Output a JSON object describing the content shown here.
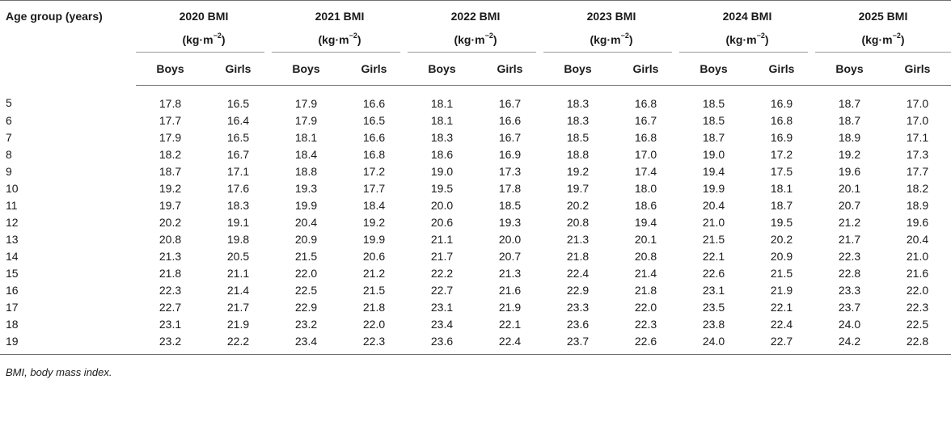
{
  "table": {
    "age_header": "Age group (years)",
    "years": [
      {
        "label": "2020 BMI",
        "unit_prefix": "(kg·m",
        "unit_exp": "−2",
        "unit_suffix": ")"
      },
      {
        "label": "2021 BMI",
        "unit_prefix": "(kg·m",
        "unit_exp": "−2",
        "unit_suffix": ")"
      },
      {
        "label": "2022 BMI",
        "unit_prefix": "(kg·m",
        "unit_exp": "−2",
        "unit_suffix": ")"
      },
      {
        "label": "2023 BMI",
        "unit_prefix": "(kg·m",
        "unit_exp": "−2",
        "unit_suffix": ")"
      },
      {
        "label": "2024 BMI",
        "unit_prefix": "(kg·m",
        "unit_exp": "−2",
        "unit_suffix": ")"
      },
      {
        "label": "2025 BMI",
        "unit_prefix": "(kg·m",
        "unit_exp": "−2",
        "unit_suffix": ")"
      }
    ],
    "sex_labels": [
      "Boys",
      "Girls"
    ],
    "rows": [
      {
        "age": "5",
        "values": [
          "17.8",
          "16.5",
          "17.9",
          "16.6",
          "18.1",
          "16.7",
          "18.3",
          "16.8",
          "18.5",
          "16.9",
          "18.7",
          "17.0"
        ]
      },
      {
        "age": "6",
        "values": [
          "17.7",
          "16.4",
          "17.9",
          "16.5",
          "18.1",
          "16.6",
          "18.3",
          "16.7",
          "18.5",
          "16.8",
          "18.7",
          "17.0"
        ]
      },
      {
        "age": "7",
        "values": [
          "17.9",
          "16.5",
          "18.1",
          "16.6",
          "18.3",
          "16.7",
          "18.5",
          "16.8",
          "18.7",
          "16.9",
          "18.9",
          "17.1"
        ]
      },
      {
        "age": "8",
        "values": [
          "18.2",
          "16.7",
          "18.4",
          "16.8",
          "18.6",
          "16.9",
          "18.8",
          "17.0",
          "19.0",
          "17.2",
          "19.2",
          "17.3"
        ]
      },
      {
        "age": "9",
        "values": [
          "18.7",
          "17.1",
          "18.8",
          "17.2",
          "19.0",
          "17.3",
          "19.2",
          "17.4",
          "19.4",
          "17.5",
          "19.6",
          "17.7"
        ]
      },
      {
        "age": "10",
        "values": [
          "19.2",
          "17.6",
          "19.3",
          "17.7",
          "19.5",
          "17.8",
          "19.7",
          "18.0",
          "19.9",
          "18.1",
          "20.1",
          "18.2"
        ]
      },
      {
        "age": "11",
        "values": [
          "19.7",
          "18.3",
          "19.9",
          "18.4",
          "20.0",
          "18.5",
          "20.2",
          "18.6",
          "20.4",
          "18.7",
          "20.7",
          "18.9"
        ]
      },
      {
        "age": "12",
        "values": [
          "20.2",
          "19.1",
          "20.4",
          "19.2",
          "20.6",
          "19.3",
          "20.8",
          "19.4",
          "21.0",
          "19.5",
          "21.2",
          "19.6"
        ]
      },
      {
        "age": "13",
        "values": [
          "20.8",
          "19.8",
          "20.9",
          "19.9",
          "21.1",
          "20.0",
          "21.3",
          "20.1",
          "21.5",
          "20.2",
          "21.7",
          "20.4"
        ]
      },
      {
        "age": "14",
        "values": [
          "21.3",
          "20.5",
          "21.5",
          "20.6",
          "21.7",
          "20.7",
          "21.8",
          "20.8",
          "22.1",
          "20.9",
          "22.3",
          "21.0"
        ]
      },
      {
        "age": "15",
        "values": [
          "21.8",
          "21.1",
          "22.0",
          "21.2",
          "22.2",
          "21.3",
          "22.4",
          "21.4",
          "22.6",
          "21.5",
          "22.8",
          "21.6"
        ]
      },
      {
        "age": "16",
        "values": [
          "22.3",
          "21.4",
          "22.5",
          "21.5",
          "22.7",
          "21.6",
          "22.9",
          "21.8",
          "23.1",
          "21.9",
          "23.3",
          "22.0"
        ]
      },
      {
        "age": "17",
        "values": [
          "22.7",
          "21.7",
          "22.9",
          "21.8",
          "23.1",
          "21.9",
          "23.3",
          "22.0",
          "23.5",
          "22.1",
          "23.7",
          "22.3"
        ]
      },
      {
        "age": "18",
        "values": [
          "23.1",
          "21.9",
          "23.2",
          "22.0",
          "23.4",
          "22.1",
          "23.6",
          "22.3",
          "23.8",
          "22.4",
          "24.0",
          "22.5"
        ]
      },
      {
        "age": "19",
        "values": [
          "23.2",
          "22.2",
          "23.4",
          "22.3",
          "23.6",
          "22.4",
          "23.7",
          "22.6",
          "24.0",
          "22.7",
          "24.2",
          "22.8"
        ]
      }
    ],
    "footnote": "BMI, body mass index."
  }
}
